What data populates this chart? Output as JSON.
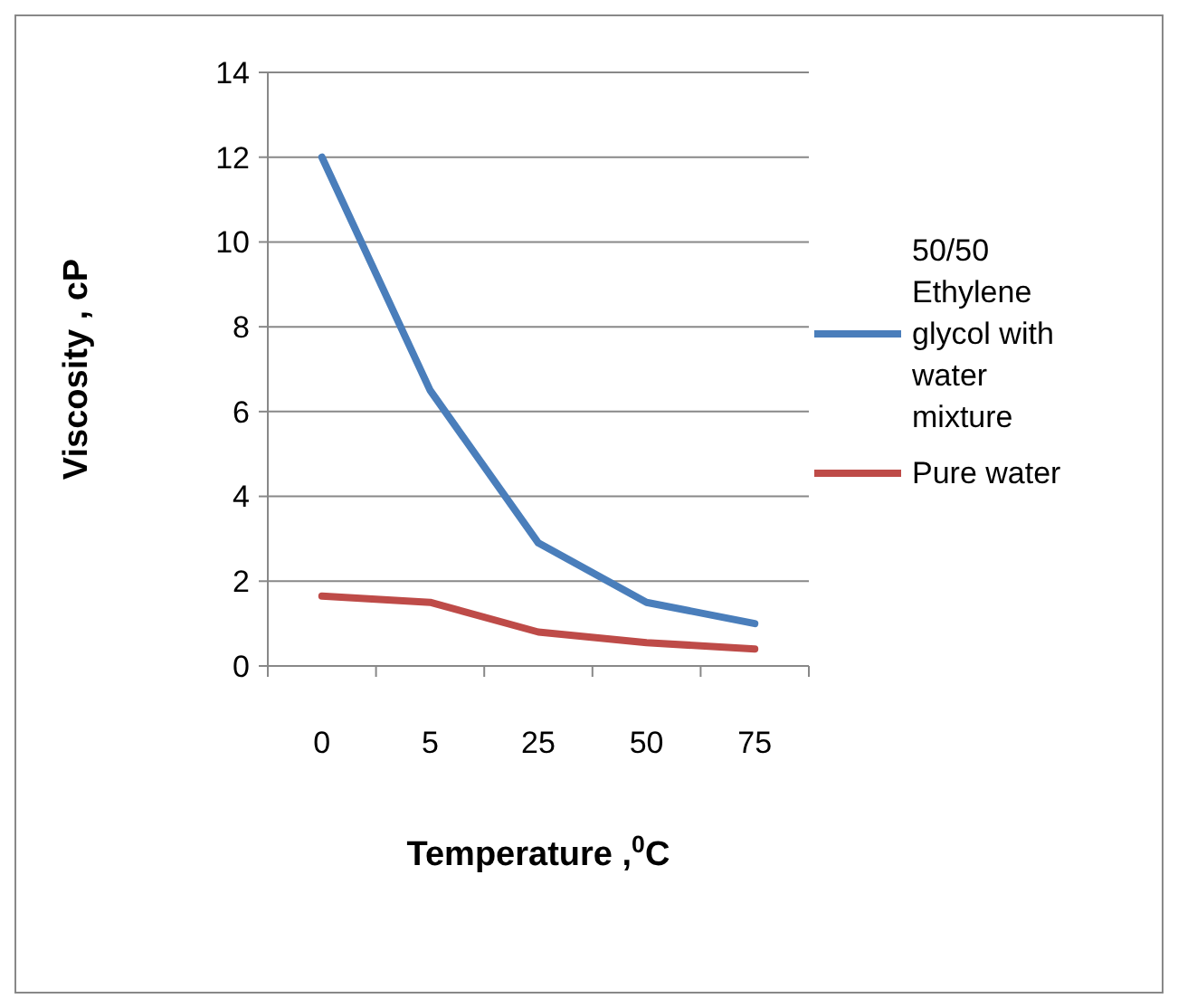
{
  "chart_data": {
    "type": "line",
    "xlabel": "Temperature ,$^{0}$C",
    "ylabel": "Viscosity , cP",
    "categories": [
      "0",
      "5",
      "25",
      "50",
      "75"
    ],
    "series": [
      {
        "name": "50/50 Ethylene glycol with water mixture",
        "color": "#4a7ebb",
        "values": [
          12,
          6.5,
          2.9,
          1.5,
          1.0
        ]
      },
      {
        "name": "Pure water",
        "color": "#be4b48",
        "values": [
          1.65,
          1.5,
          0.8,
          0.55,
          0.4
        ]
      }
    ],
    "ylim": [
      0,
      14
    ],
    "yticks": [
      0,
      2,
      4,
      6,
      8,
      10,
      12,
      14
    ],
    "grid": "y",
    "legend": "right",
    "marker": "none",
    "line_style": "solid"
  }
}
